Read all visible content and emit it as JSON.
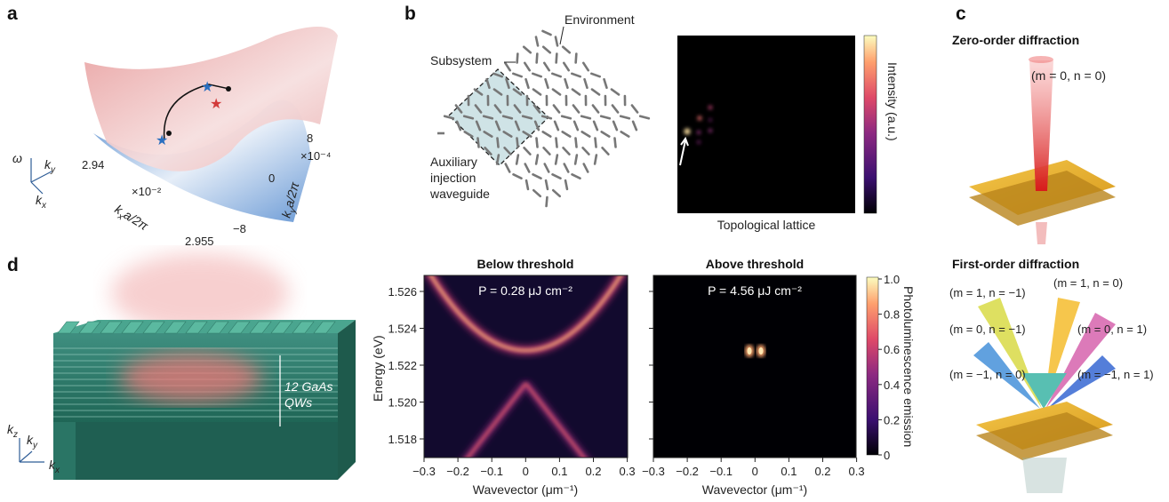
{
  "panel_a": {
    "label": "a",
    "omega": "ω",
    "kx": {
      "base": "k",
      "sub": "x"
    },
    "ky": {
      "base": "k",
      "sub": "y"
    },
    "kx_ticks": [
      "2.94",
      "2.955"
    ],
    "kx_scale": "×10⁻²",
    "kx_axis": {
      "base": "k",
      "sub": "x",
      "rest": "a/2π"
    },
    "ky_ticks": [
      "8",
      "0",
      "−8"
    ],
    "ky_scale": "×10⁻⁴",
    "ky_axis": {
      "base": "k",
      "sub": "y",
      "rest": "a/2π"
    }
  },
  "panel_b": {
    "label": "b",
    "environment": "Environment",
    "subsystem": "Subsystem",
    "waveguide": [
      "Auxiliary",
      "injection",
      "waveguide"
    ],
    "colorbar_label": "Intensity (a.u.)",
    "xlabel": "Topological lattice"
  },
  "panel_c": {
    "label": "c",
    "zero_title": "Zero-order diffraction",
    "zero_beam": "(m = 0, n = 0)",
    "first_title": "First-order diffraction",
    "first_beams": [
      "(m = 1, n = −1)",
      "(m = 1, n = 0)",
      "(m = 0, n = −1)",
      "(m = 0, n = 1)",
      "(m = −1, n = 0)",
      "(m = −1, n = 1)"
    ]
  },
  "panel_d": {
    "label": "d",
    "qw": [
      "12 GaAs",
      "QWs"
    ],
    "kz": {
      "base": "k",
      "sub": "z"
    },
    "ky": {
      "base": "k",
      "sub": "y"
    },
    "kx": {
      "base": "k",
      "sub": "x"
    },
    "left_title": "Below threshold",
    "left_power": "P = 0.28 μJ cm⁻²",
    "right_title": "Above threshold",
    "right_power": "P = 4.56 μJ cm⁻²",
    "ylabel": "Energy (eV)",
    "yticks": [
      "1.526",
      "1.524",
      "1.522",
      "1.520",
      "1.518"
    ],
    "xticks": [
      "−0.3",
      "−0.2",
      "−0.1",
      "0",
      "0.1",
      "0.2",
      "0.3"
    ],
    "xlabel": "Wavevector (μm⁻¹)",
    "colorbar_ticks": [
      "1.0",
      "0.8",
      "0.6",
      "0.4",
      "0.2",
      "0"
    ],
    "colorbar_label": "Photoluminescence emission"
  }
}
